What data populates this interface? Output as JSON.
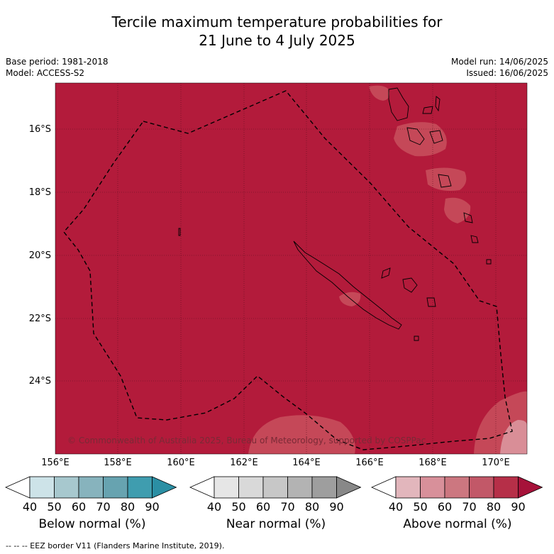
{
  "header": {
    "title_line1": "Tercile maximum temperature probabilities for",
    "title_line2": "21 June to 4 July 2025",
    "base_period": "Base period: 1981-2018",
    "model": "Model: ACCESS-S2",
    "model_run": "Model run: 14/06/2025",
    "issued": "Issued: 16/06/2025"
  },
  "map": {
    "background_color": "#b31b3b",
    "light_patch_color": "#c54858",
    "lighter_patch_color": "#d98e97",
    "copyright": "© Commonwealth of Australia 2025, Bureau of Meteorology, supported by COSPPac",
    "lat_labels": [
      "16°S",
      "18°S",
      "20°S",
      "22°S",
      "24°S"
    ],
    "lon_labels": [
      "156°E",
      "158°E",
      "160°E",
      "162°E",
      "164°E",
      "166°E",
      "168°E",
      "170°E"
    ]
  },
  "legends": [
    {
      "title": "Below normal (%)",
      "ticks": [
        "40",
        "50",
        "60",
        "70",
        "80",
        "90"
      ],
      "colors": [
        "#ffffff",
        "#cde3e8",
        "#a7c8ce",
        "#87b3bd",
        "#67a3b0",
        "#3f9daf",
        "#2b8fa4"
      ]
    },
    {
      "title": "Near normal (%)",
      "ticks": [
        "40",
        "50",
        "60",
        "70",
        "80",
        "90"
      ],
      "colors": [
        "#ffffff",
        "#e6e6e6",
        "#d9d9d9",
        "#c7c7c7",
        "#b3b3b3",
        "#9e9e9e",
        "#888888"
      ]
    },
    {
      "title": "Above normal (%)",
      "ticks": [
        "40",
        "50",
        "60",
        "70",
        "80",
        "90"
      ],
      "colors": [
        "#ffffff",
        "#e2b6bc",
        "#d8909a",
        "#cc7780",
        "#c25868",
        "#b62f48",
        "#a6123a"
      ]
    }
  ],
  "footnote": "-- -- -- EEZ border V11 (Flanders Marine Institute, 2019)."
}
